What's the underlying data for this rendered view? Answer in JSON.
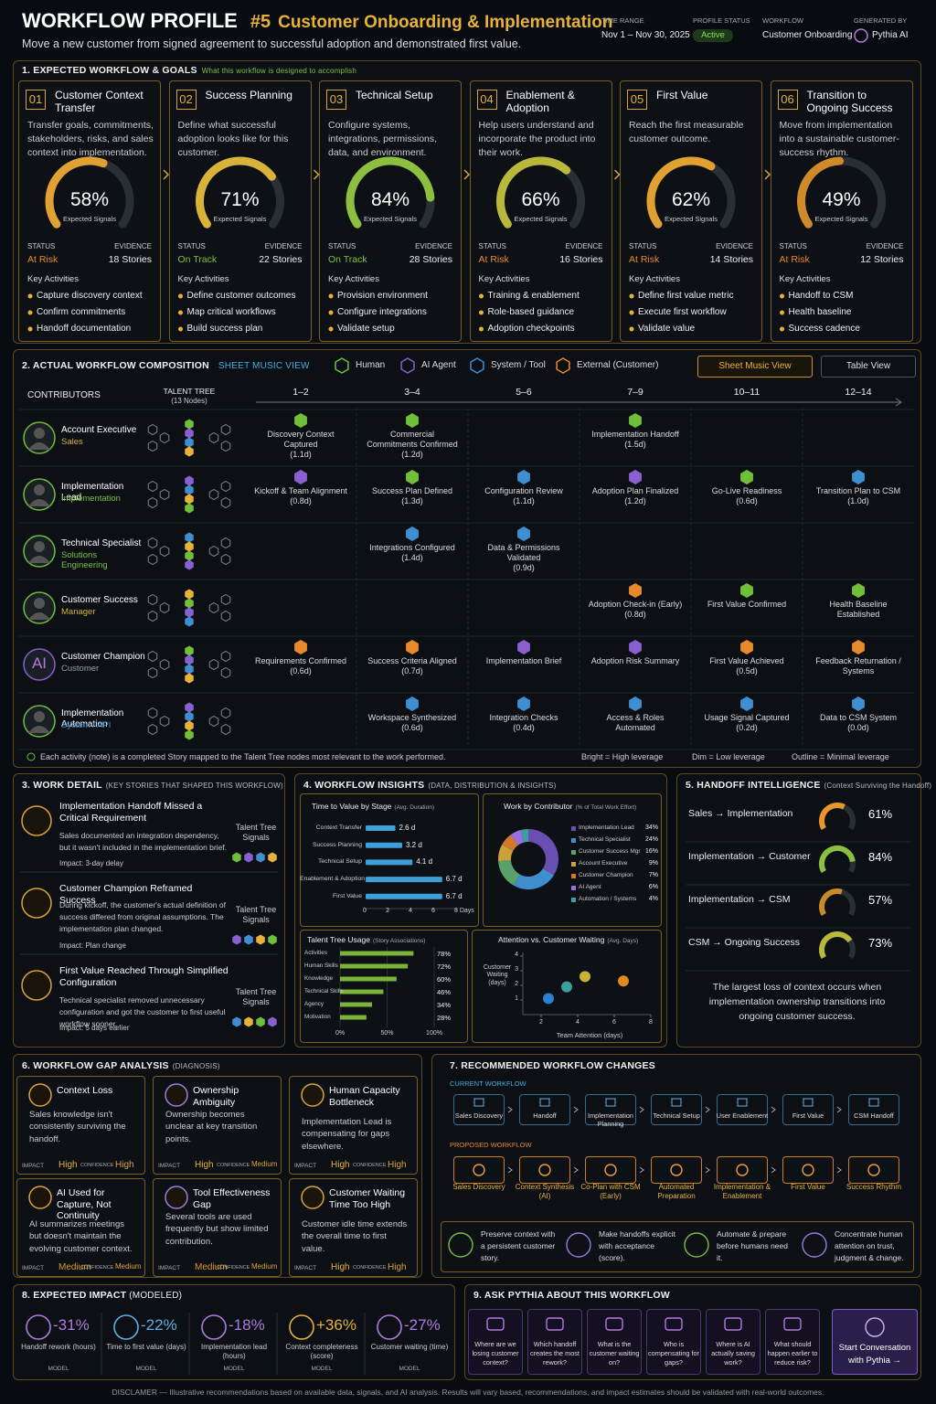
{
  "header": {
    "title": "WORKFLOW PROFILE",
    "number": "#5",
    "name": "Customer Onboarding & Implementation",
    "subtitle": "Move a new customer from signed agreement to successful adoption and demonstrated first value.",
    "meta": [
      {
        "label": "TIME RANGE",
        "value": "Nov 1 – Nov 30, 2025"
      },
      {
        "label": "PROFILE STATUS",
        "value": "Active"
      },
      {
        "label": "WORKFLOW",
        "value": "Customer Onboarding"
      },
      {
        "label": "GENERATED BY",
        "value": "Pythia AI"
      }
    ]
  },
  "expected": {
    "title": "1. EXPECTED WORKFLOW & GOALS",
    "subtitle": "What this workflow is designed to accomplish",
    "signal_caption": "Expected Signals",
    "status_label": "STATUS",
    "evidence_label": "EVIDENCE",
    "activities_label": "Key Activities",
    "stages": [
      {
        "number": "01",
        "title": "Customer Context Transfer",
        "description": "Transfer goals, commitments, stakeholders, risks, and sales context into implementation.",
        "signal": 58,
        "signal_label": "58%",
        "color": "#e0a032",
        "status": "At Risk",
        "status_color": "#e8892a",
        "evidence": "18 Stories",
        "activities": [
          "Capture discovery context",
          "Confirm commitments",
          "Handoff documentation"
        ]
      },
      {
        "number": "02",
        "title": "Success Planning",
        "description": "Define what successful adoption looks like for this customer.",
        "signal": 71,
        "signal_label": "71%",
        "color": "#d9b23a",
        "status": "On Track",
        "status_color": "#7bc043",
        "evidence": "22 Stories",
        "activities": [
          "Define customer outcomes",
          "Map critical workflows",
          "Build success plan"
        ]
      },
      {
        "number": "03",
        "title": "Technical Setup",
        "description": "Configure systems, integrations, permissions, data, and environment.",
        "signal": 84,
        "signal_label": "84%",
        "color": "#8cbf3f",
        "status": "On Track",
        "status_color": "#7bc043",
        "evidence": "28 Stories",
        "activities": [
          "Provision environment",
          "Configure integrations",
          "Validate setup"
        ]
      },
      {
        "number": "04",
        "title": "Enablement & Adoption",
        "description": "Help users understand and incorporate the product into their work.",
        "signal": 66,
        "signal_label": "66%",
        "color": "#b9b83a",
        "status": "At Risk",
        "status_color": "#e8892a",
        "evidence": "16 Stories",
        "activities": [
          "Training & enablement",
          "Role-based guidance",
          "Adoption checkpoints"
        ]
      },
      {
        "number": "05",
        "title": "First Value",
        "description": "Reach the first measurable customer outcome.",
        "signal": 62,
        "signal_label": "62%",
        "color": "#e0a032",
        "status": "At Risk",
        "status_color": "#e8892a",
        "evidence": "14 Stories",
        "activities": [
          "Define first value metric",
          "Execute first workflow",
          "Validate value"
        ]
      },
      {
        "number": "06",
        "title": "Transition to Ongoing Success",
        "description": "Move from implementation into a sustainable customer-success rhythm.",
        "signal": 49,
        "signal_label": "49%",
        "color": "#d08a2a",
        "status": "At Risk",
        "status_color": "#e8892a",
        "evidence": "12 Stories",
        "activities": [
          "Handoff to CSM",
          "Health baseline",
          "Success cadence"
        ]
      }
    ]
  },
  "composition": {
    "title": "2. ACTUAL WORKFLOW COMPOSITION",
    "view": "SHEET MUSIC VIEW",
    "legend": [
      {
        "name": "Human",
        "color": "#6fbf3a"
      },
      {
        "name": "AI Agent",
        "color": "#8a5fd0"
      },
      {
        "name": "System / Tool",
        "color": "#3f8fd0"
      },
      {
        "name": "External (Customer)",
        "color": "#e8892a"
      }
    ],
    "buttons": [
      "Sheet Music View",
      "Table View"
    ],
    "contributors_label": "CONTRIBUTORS",
    "tree_label": "TALENT TREE",
    "tree_nodes": "(13 Nodes)",
    "columns": [
      "1–2",
      "3–4",
      "5–6",
      "7–9",
      "10–11",
      "12–14"
    ],
    "rows": [
      {
        "name": "Account Executive",
        "role": "Sales",
        "role_color": "#d9b23a",
        "notes": [
          {
            "label": "Discovery Context Captured",
            "duration": "(1.1d)",
            "color": "#6fbf3a"
          },
          {
            "label": "Commercial Commitments Confirmed",
            "duration": "(1.2d)",
            "color": "#6fbf3a"
          },
          null,
          {
            "label": "Implementation Handoff",
            "duration": "(1.5d)",
            "color": "#6fbf3a"
          },
          null,
          null
        ]
      },
      {
        "name": "Implementation Lead",
        "role": "Implementation",
        "role_color": "#7bc043",
        "notes": [
          {
            "label": "Kickoff & Team Alignment",
            "duration": "(0.8d)",
            "color": "#8a5fd0"
          },
          {
            "label": "Success Plan Defined",
            "duration": "(1.3d)",
            "color": "#6fbf3a"
          },
          {
            "label": "Configuration Review",
            "duration": "(1.1d)",
            "color": "#3f8fd0"
          },
          {
            "label": "Adoption Plan Finalized",
            "duration": "(1.2d)",
            "color": "#8a5fd0"
          },
          {
            "label": "Go-Live Readiness",
            "duration": "(0.6d)",
            "color": "#6fbf3a"
          },
          {
            "label": "Transition Plan to CSM",
            "duration": "(1.0d)",
            "color": "#3f8fd0"
          }
        ]
      },
      {
        "name": "Technical Specialist",
        "role": "Solutions Engineering",
        "role_color": "#7bc043",
        "notes": [
          null,
          {
            "label": "Integrations Configured",
            "duration": "(1.4d)",
            "color": "#3f8fd0"
          },
          {
            "label": "Data & Permissions Validated",
            "duration": "(0.9d)",
            "color": "#3f8fd0"
          },
          null,
          null,
          null
        ]
      },
      {
        "name": "Customer Success",
        "role": "Manager",
        "role_color": "#d9b23a",
        "notes": [
          null,
          null,
          null,
          {
            "label": "Adoption Check-in (Early)",
            "duration": "(0.8d)",
            "color": "#e8892a"
          },
          {
            "label": "First Value Confirmed",
            "duration": null,
            "color": "#6fbf3a"
          },
          {
            "label": "Health Baseline Established",
            "duration": null,
            "color": "#6fbf3a"
          }
        ]
      },
      {
        "name": "Customer Champion",
        "role": "Customer",
        "role_color": "#9aa0a8",
        "avatar": "AI",
        "notes": [
          {
            "label": "Requirements Confirmed",
            "duration": "(0.6d)",
            "color": "#e8892a"
          },
          {
            "label": "Success Criteria Aligned",
            "duration": "(0.7d)",
            "color": "#e8892a"
          },
          {
            "label": "Implementation Brief",
            "duration": null,
            "color": "#8a5fd0"
          },
          {
            "label": "Adoption Risk Summary",
            "duration": null,
            "color": "#8a5fd0"
          },
          {
            "label": "First Value Achieved",
            "duration": "(0.5d)",
            "color": "#e8892a"
          },
          {
            "label": "Feedback Returnation / Systems",
            "duration": null,
            "color": "#e8892a"
          }
        ]
      },
      {
        "name": "Implementation Automation",
        "role": "System / API",
        "role_color": "#3f8fd0",
        "notes": [
          null,
          {
            "label": "Workspace Synthesized",
            "duration": "(0.6d)",
            "color": "#3f8fd0"
          },
          {
            "label": "Integration Checks",
            "duration": "(0.4d)",
            "color": "#3f8fd0"
          },
          {
            "label": "Access & Roles Automated",
            "duration": null,
            "color": "#3f8fd0"
          },
          {
            "label": "Usage Signal Captured",
            "duration": "(0.2d)",
            "color": "#3f8fd0"
          },
          {
            "label": "Data to CSM System",
            "duration": "(0.0d)",
            "color": "#3f8fd0"
          }
        ]
      }
    ],
    "footnote": "Each activity (note) is a completed Story mapped to the Talent Tree nodes most relevant to the work performed.",
    "keys": [
      "Bright = High leverage",
      "Dim = Low leverage",
      "Outline = Minimal leverage"
    ]
  },
  "work_detail": {
    "title": "3. WORK DETAIL",
    "subtitle": "(KEY STORIES THAT SHAPED THIS WORKFLOW)",
    "signals_label": "Talent Tree Signals",
    "stories": [
      {
        "title": "Implementation Handoff Missed a Critical Requirement",
        "description": "Sales documented an integration dependency, but it wasn't included in the implementation brief.",
        "impact": "Impact: 3-day delay"
      },
      {
        "title": "Customer Champion Reframed Success",
        "description": "During kickoff, the customer's actual definition of success differed from original assumptions. The implementation plan changed.",
        "impact": "Impact: Plan change"
      },
      {
        "title": "First Value Reached Through Simplified Configuration",
        "description": "Technical specialist removed unnecessary configuration and got the customer to first useful workflow sooner.",
        "impact": "Impact: 5 days earlier"
      }
    ]
  },
  "insights": {
    "title": "4. WORKFLOW INSIGHTS",
    "subtitle": "(DATA, DISTRIBUTION & INSIGHTS)",
    "time_to_value": {
      "type": "bar",
      "title": "Time to Value by Stage",
      "subtitle": "(Avg. Duration)",
      "categories": [
        "Context Transfer",
        "Success Planning",
        "Technical Setup",
        "Enablement & Adoption",
        "First Value"
      ],
      "values": [
        2.6,
        3.2,
        4.1,
        6.7,
        6.7
      ],
      "value_labels": [
        "2.6 d",
        "3.2 d",
        "4.1 d",
        "6.7 d",
        "6.7 d"
      ],
      "color": "#3f9fd8",
      "xlim": [
        0,
        8
      ],
      "xticks": [
        0,
        2,
        4,
        6,
        {
          "value": 8,
          "label": "8 Days"
        }
      ]
    },
    "work_by_contributor": {
      "type": "pie",
      "title": "Work by Contributor",
      "subtitle": "(% of Total Work Effort)",
      "categories": [
        "Implementation Lead",
        "Technical Specialist",
        "Customer Success Mgr",
        "Account Executive",
        "Customer Champion",
        "AI Agent",
        "Automation / Systems"
      ],
      "values": [
        34,
        24,
        16,
        9,
        7,
        6,
        4
      ],
      "value_labels": [
        "34%",
        "24%",
        "16%",
        "9%",
        "7%",
        "6%",
        "4%"
      ],
      "colors": [
        "#6a4fb3",
        "#3f8fd0",
        "#5aa06a",
        "#c9a23a",
        "#d27a2c",
        "#9a6fdf",
        "#3aa0a0"
      ]
    },
    "talent_usage": {
      "type": "bar",
      "title": "Talent Tree Usage",
      "subtitle": "(Story Associations)",
      "categories": [
        "Activities",
        "Human Skills",
        "Knowledge",
        "Technical Skills",
        "Agency",
        "Motivation"
      ],
      "values": [
        78,
        72,
        60,
        46,
        34,
        28
      ],
      "value_labels": [
        "78%",
        "72%",
        "60%",
        "46%",
        "34%",
        "28%"
      ],
      "color": "#7bb33a",
      "xlim": [
        0,
        100
      ],
      "xticks": [
        {
          "value": 0,
          "label": "0%"
        },
        {
          "value": 50,
          "label": "50%"
        },
        {
          "value": 100,
          "label": "100%"
        }
      ]
    },
    "attention": {
      "type": "scatter",
      "title": "Attention vs. Customer Waiting",
      "subtitle": "(Avg. Days)",
      "x_label": "Team Attention (days)",
      "y_label": "Customer Waiting (days)",
      "x": [
        2.4,
        3.4,
        4.4,
        6.5
      ],
      "values": [
        1.1,
        1.9,
        2.6,
        2.3
      ],
      "colors": [
        "#2f7fd0",
        "#3aa0a0",
        "#c9b23a",
        "#e08a20"
      ],
      "xlim": [
        1,
        8
      ],
      "xticks": [
        2,
        4,
        6,
        8
      ],
      "ylim": [
        0,
        4
      ],
      "yticks": [
        1,
        2,
        3,
        4
      ]
    }
  },
  "handoff": {
    "title": "5. HANDOFF INTELLIGENCE",
    "subtitle": "(Context Surviving the Handoff)",
    "items": [
      {
        "label": "Sales → Implementation",
        "value": 61,
        "value_label": "61%",
        "color": "#e8962a"
      },
      {
        "label": "Implementation → Customer",
        "value": 84,
        "value_label": "84%",
        "color": "#8cbf3f"
      },
      {
        "label": "Implementation → CSM",
        "value": 57,
        "value_label": "57%",
        "color": "#c98a2a"
      },
      {
        "label": "CSM → Ongoing Success",
        "value": 73,
        "value_label": "73%",
        "color": "#b9b83a"
      }
    ],
    "note": "The largest loss of context occurs when implementation ownership transitions into ongoing customer success."
  },
  "gaps": {
    "title": "6. WORKFLOW GAP ANALYSIS",
    "subtitle": "(DIAGNOSIS)",
    "impact_label": "IMPACT",
    "confidence_label": "CONFIDENCE",
    "items": [
      {
        "title": "Context Loss",
        "description": "Sales knowledge isn't consistently surviving the handoff.",
        "impact": "High",
        "confidence": "High"
      },
      {
        "title": "Ownership Ambiguity",
        "description": "Ownership becomes unclear at key transition points.",
        "impact": "High",
        "confidence": "Medium"
      },
      {
        "title": "Human Capacity Bottleneck",
        "description": "Implementation Lead is compensating for gaps elsewhere.",
        "impact": "High",
        "confidence": "High"
      },
      {
        "title": "AI Used for Capture, Not Continuity",
        "description": "AI summarizes meetings but doesn't maintain the evolving customer context.",
        "impact": "Medium",
        "confidence": "Medium"
      },
      {
        "title": "Tool Effectiveness Gap",
        "description": "Several tools are used frequently but show limited contribution.",
        "impact": "Medium",
        "confidence": "Medium"
      },
      {
        "title": "Customer Waiting Time Too High",
        "description": "Customer idle time extends the overall time to first value.",
        "impact": "High",
        "confidence": "High"
      }
    ]
  },
  "changes": {
    "title": "7. RECOMMENDED WORKFLOW CHANGES",
    "current_label": "CURRENT WORKFLOW",
    "current": [
      "Sales Discovery",
      "Handoff",
      "Implementation Planning",
      "Technical Setup",
      "User Enablement",
      "First Value",
      "CSM Handoff"
    ],
    "proposed_label": "PROPOSED WORKFLOW",
    "proposed": [
      "Sales Discovery",
      "Context Synthesis (AI)",
      "Co-Plan with CSM (Early)",
      "Automated Preparation",
      "Implementation & Enablement",
      "First Value",
      "Success Rhythm"
    ],
    "principles": [
      "Preserve context with a persistent customer story.",
      "Make handoffs explicit with acceptance (score).",
      "Automate & prepare before humans need it.",
      "Concentrate human attention on trust, judgment & change."
    ]
  },
  "impact": {
    "title": "8. EXPECTED IMPACT",
    "subtitle": "(MODELED)",
    "model_label": "MODEL",
    "items": [
      {
        "value": "-31%",
        "label": "Handoff rework (hours)",
        "color": "#b07be0"
      },
      {
        "value": "-22%",
        "label": "Time to first value (days)",
        "color": "#5fb0e8"
      },
      {
        "value": "-18%",
        "label": "Implementation lead (hours)",
        "color": "#b07be0"
      },
      {
        "value": "+36%",
        "label": "Context completeness (score)",
        "color": "#e8b23a"
      },
      {
        "value": "-27%",
        "label": "Customer waiting (time)",
        "color": "#b07be0"
      }
    ]
  },
  "ask": {
    "title": "9. ASK PYTHIA ABOUT THIS WORKFLOW",
    "questions": [
      "Where are we losing customer context?",
      "Which handoff creates the most rework?",
      "What is the customer waiting on?",
      "Who is compensating for gaps?",
      "Where is AI actually saving work?",
      "What should happen earlier to reduce risk?"
    ],
    "button": "Start Conversation with Pythia →"
  },
  "disclaimer": "DISCLAMER — Illustrative recommendations based on available data, signals, and AI analysis. Results will vary based, recommendations, and impact estimates should be validated with real-world outcomes."
}
